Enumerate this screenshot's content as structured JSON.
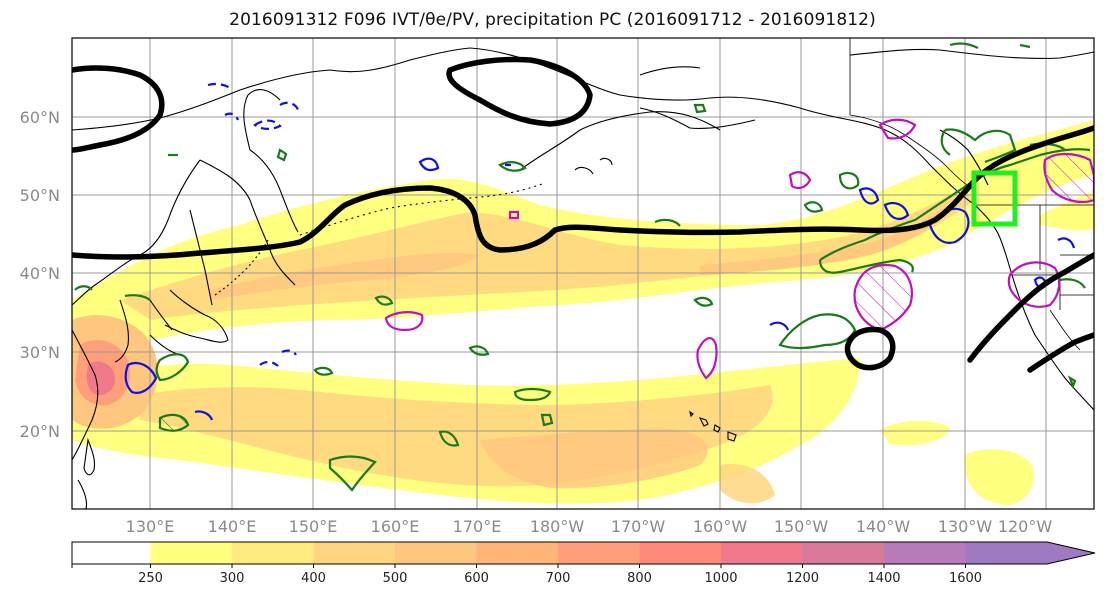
{
  "title": "2016091312 F096 IVT/θe/PV, precipitation PC (2016091712 - 2016091812)",
  "map": {
    "type": "map",
    "projection": "PlateCarree",
    "lon_range": [
      120,
      -110
    ],
    "lat_range": [
      10,
      70
    ],
    "lat_ticks": [
      {
        "label": "20°N",
        "lat": 20
      },
      {
        "label": "30°N",
        "lat": 30
      },
      {
        "label": "40°N",
        "lat": 40
      },
      {
        "label": "50°N",
        "lat": 50
      },
      {
        "label": "60°N",
        "lat": 60
      }
    ],
    "lon_ticks": [
      {
        "label": "130°E",
        "lon": 130
      },
      {
        "label": "140°E",
        "lon": 140
      },
      {
        "label": "150°E",
        "lon": 150
      },
      {
        "label": "160°E",
        "lon": 160
      },
      {
        "label": "170°E",
        "lon": 170
      },
      {
        "label": "180°W",
        "lon": 180
      },
      {
        "label": "170°W",
        "lon": 190
      },
      {
        "label": "160°W",
        "lon": 200
      },
      {
        "label": "150°W",
        "lon": 210
      },
      {
        "label": "140°W",
        "lon": 220
      },
      {
        "label": "130°W",
        "lon": 230
      },
      {
        "label": "120°W",
        "lon": 240
      }
    ],
    "grid": true,
    "colors": {
      "theta_e_contour": "#000000",
      "pv_positive": "#1a7a1a",
      "pv_negative": "#1010dd",
      "precip_pc": "#c010c0",
      "target_box": "#22ee22"
    }
  },
  "colorbar": {
    "levels": [
      250,
      300,
      400,
      500,
      600,
      700,
      800,
      1000,
      1200,
      1400,
      1600
    ],
    "labels": [
      "250",
      "300",
      "400",
      "500",
      "600",
      "700",
      "800",
      "1000",
      "1200",
      "1400",
      "1600"
    ],
    "colors": [
      "#ffff80",
      "#ffeb80",
      "#ffd680",
      "#ffc680",
      "#ffb47a",
      "#ff9f7a",
      "#ff8a7a",
      "#f07a8a",
      "#d87a9a",
      "#b87ab8",
      "#a07ac0"
    ],
    "extend": "max"
  }
}
